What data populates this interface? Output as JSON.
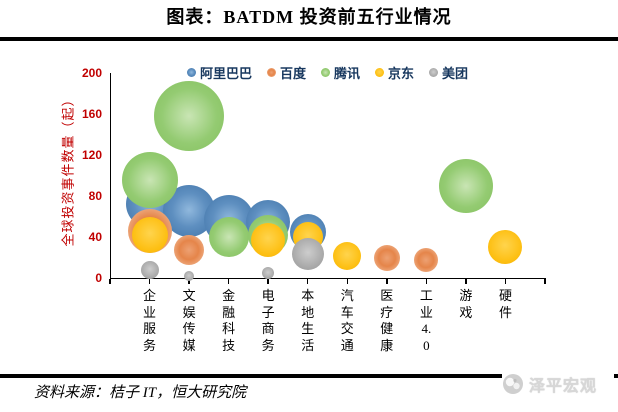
{
  "title": "图表：BATDM 投资前五行业情况",
  "source": "资料来源：桔子 IT，恒大研究院",
  "watermark": {
    "text": "泽平宏观"
  },
  "colors": {
    "alibaba": "#4a7fb5",
    "baidu": "#ed7d31",
    "tencent": "#84c05e",
    "jd": "#fdbf12",
    "meituan": "#a6a6a6",
    "axis_label_red": "#c00000",
    "legend_text_navy": "#17375e"
  },
  "y_axis": {
    "title": "全球投资事件数量（起）",
    "ticks": [
      0,
      40,
      80,
      120,
      160,
      200
    ],
    "max": 200
  },
  "x_axis": {
    "categories": [
      {
        "label": "企业服务",
        "lines": [
          "企",
          "业",
          "服",
          "务"
        ]
      },
      {
        "label": "文娱传媒",
        "lines": [
          "文",
          "娱",
          "传",
          "媒"
        ]
      },
      {
        "label": "金融科技",
        "lines": [
          "金",
          "融",
          "科",
          "技"
        ]
      },
      {
        "label": "电子商务",
        "lines": [
          "电",
          "子",
          "商",
          "务"
        ]
      },
      {
        "label": "本地生活",
        "lines": [
          "本",
          "地",
          "生",
          "活"
        ]
      },
      {
        "label": "汽车交通",
        "lines": [
          "汽",
          "车",
          "交",
          "通"
        ]
      },
      {
        "label": "医疗健康",
        "lines": [
          "医",
          "疗",
          "健",
          "康"
        ]
      },
      {
        "label": "工业4.0",
        "lines": [
          "工",
          "业",
          "4.",
          "0"
        ]
      },
      {
        "label": "游戏",
        "lines": [
          "游",
          "戏"
        ]
      },
      {
        "label": "硬件",
        "lines": [
          "硬",
          "件"
        ]
      }
    ]
  },
  "chart_data": {
    "type": "bubble",
    "title": "图表：BATDM 投资前五行业情况",
    "ylabel": "全球投资事件数量（起）",
    "ylim": [
      0,
      200
    ],
    "y_step": 40,
    "grid": false,
    "legend_position": "top-center",
    "categories": [
      "企业服务",
      "文娱传媒",
      "金融科技",
      "电子商务",
      "本地生活",
      "汽车交通",
      "医疗健康",
      "工业4.0",
      "游戏",
      "硬件"
    ],
    "series": [
      {
        "name": "阿里巴巴",
        "color": "#4a7fb5",
        "points": [
          {
            "category": "企业服务",
            "events": 72,
            "bubble_radius_px": 24
          },
          {
            "category": "文娱传媒",
            "events": 65,
            "bubble_radius_px": 26
          },
          {
            "category": "金融科技",
            "events": 57,
            "bubble_radius_px": 25
          },
          {
            "category": "电子商务",
            "events": 55,
            "bubble_radius_px": 22
          },
          {
            "category": "本地生活",
            "events": 45,
            "bubble_radius_px": 18
          }
        ]
      },
      {
        "name": "百度",
        "color": "#ed7d31",
        "points": [
          {
            "category": "企业服务",
            "events": 46,
            "bubble_radius_px": 22
          },
          {
            "category": "文娱传媒",
            "events": 27,
            "bubble_radius_px": 15
          },
          {
            "category": "医疗健康",
            "events": 20,
            "bubble_radius_px": 13
          },
          {
            "category": "工业4.0",
            "events": 18,
            "bubble_radius_px": 12
          }
        ]
      },
      {
        "name": "腾讯",
        "color": "#84c05e",
        "points": [
          {
            "category": "文娱传媒",
            "events": 158,
            "bubble_radius_px": 35
          },
          {
            "category": "企业服务",
            "events": 96,
            "bubble_radius_px": 28
          },
          {
            "category": "游戏",
            "events": 90,
            "bubble_radius_px": 27
          },
          {
            "category": "电子商务",
            "events": 42,
            "bubble_radius_px": 20
          },
          {
            "category": "金融科技",
            "events": 40,
            "bubble_radius_px": 20
          }
        ]
      },
      {
        "name": "京东",
        "color": "#fdbf12",
        "points": [
          {
            "category": "企业服务",
            "events": 42,
            "bubble_radius_px": 18
          },
          {
            "category": "本地生活",
            "events": 40,
            "bubble_radius_px": 15
          },
          {
            "category": "电子商务",
            "events": 37,
            "bubble_radius_px": 17
          },
          {
            "category": "硬件",
            "events": 30,
            "bubble_radius_px": 17
          },
          {
            "category": "汽车交通",
            "events": 21,
            "bubble_radius_px": 14
          }
        ]
      },
      {
        "name": "美团",
        "color": "#a6a6a6",
        "points": [
          {
            "category": "本地生活",
            "events": 23,
            "bubble_radius_px": 16
          },
          {
            "category": "企业服务",
            "events": 8,
            "bubble_radius_px": 9
          },
          {
            "category": "电子商务",
            "events": 5,
            "bubble_radius_px": 6
          },
          {
            "category": "文娱传媒",
            "events": 2,
            "bubble_radius_px": 5
          }
        ]
      }
    ]
  }
}
